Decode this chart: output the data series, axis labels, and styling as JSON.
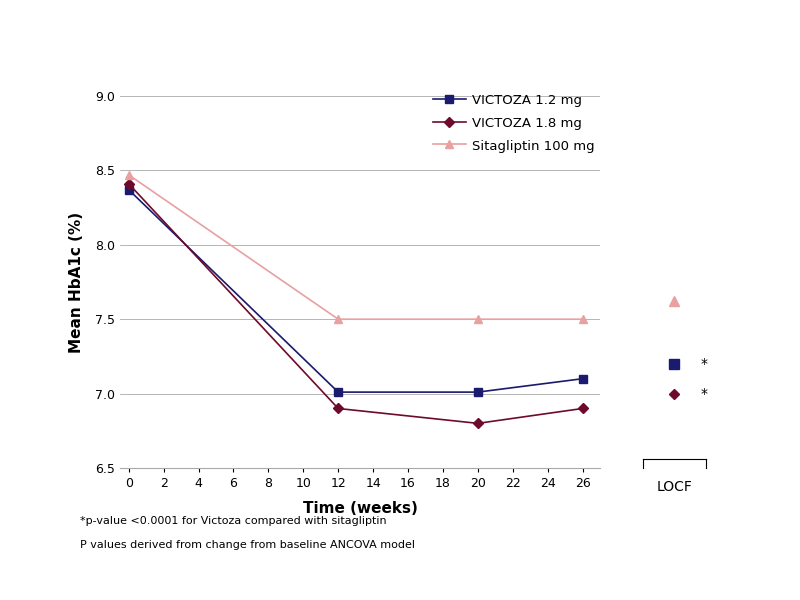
{
  "title": "",
  "xlabel": "Time (weeks)",
  "ylabel": "Mean HbA1c (%)",
  "footnote1": "*p-value <0.0001 for Victoza compared with sitagliptin",
  "footnote2": "P values derived from change from baseline ANCOVA model",
  "ylim": [
    6.5,
    9.0
  ],
  "yticks": [
    6.5,
    7.0,
    7.5,
    8.0,
    8.5,
    9.0
  ],
  "xticks": [
    0,
    2,
    4,
    6,
    8,
    10,
    12,
    14,
    16,
    18,
    20,
    22,
    24,
    26
  ],
  "main_weeks": [
    0,
    12,
    20,
    26
  ],
  "victoza_12": [
    8.37,
    7.01,
    7.01,
    7.1
  ],
  "victoza_18": [
    8.41,
    6.9,
    6.8,
    6.9
  ],
  "sitagliptin": [
    8.47,
    7.5,
    7.5,
    7.5
  ],
  "locf_victoza_12_y": 7.2,
  "locf_victoza_18_y": 7.0,
  "locf_sitagliptin_y": 7.62,
  "color_victoza12": "#1a1a6e",
  "color_victoza18": "#6e0a2a",
  "color_sitagliptin": "#e8a0a0",
  "legend_labels": [
    "VICTOZA 1.2 mg",
    "VICTOZA 1.8 mg",
    "Sitagliptin 100 mg"
  ],
  "marker_victoza12": "s",
  "marker_victoza18": "D",
  "marker_sitagliptin": "^",
  "linewidth": 1.2,
  "markersize": 6,
  "background_color": "#ffffff"
}
